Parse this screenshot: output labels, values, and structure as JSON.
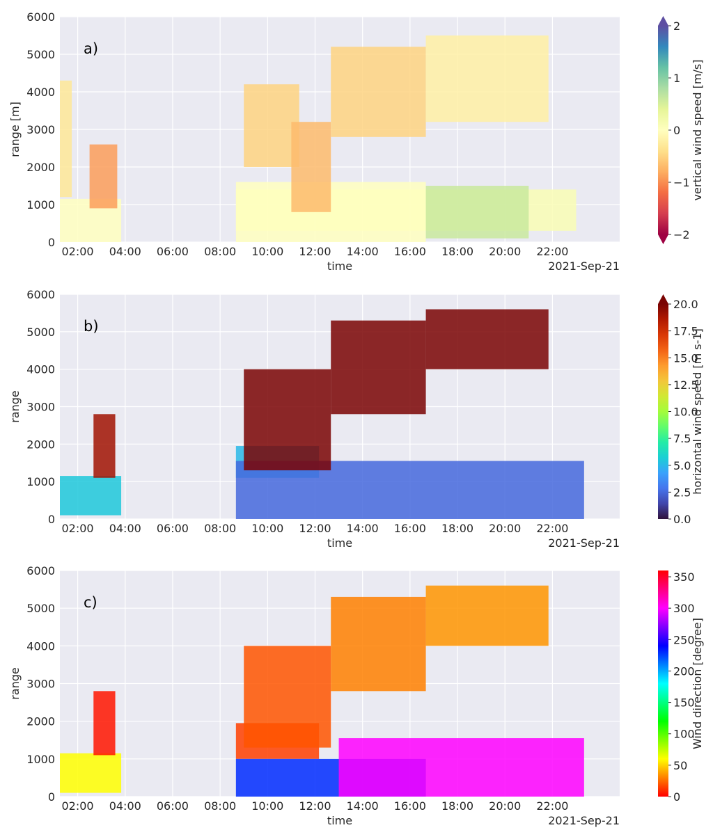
{
  "figure": {
    "date_label": "2021-Sep-21"
  },
  "chart_data": [
    {
      "panel_label": "a)",
      "type": "heatmap",
      "xlabel": "time",
      "ylabel": "range [m]",
      "x_ticks": [
        "02:00",
        "04:00",
        "06:00",
        "08:00",
        "10:00",
        "12:00",
        "14:00",
        "16:00",
        "18:00",
        "20:00",
        "22:00"
      ],
      "y_ticks": [
        0,
        1000,
        2000,
        3000,
        4000,
        5000,
        6000
      ],
      "xlim": [
        "01:15",
        "24:50"
      ],
      "ylim": [
        0,
        6000
      ],
      "colorbar": {
        "label": "vertical wind speed [m/s]",
        "min": -2,
        "max": 2,
        "ticks": [
          -2,
          -1,
          0,
          1,
          2
        ],
        "tick_labels": [
          "−2",
          "−1",
          "0",
          "1",
          "2"
        ],
        "extend": "both",
        "colormap": [
          "#9e0142",
          "#d53e4f",
          "#f46d43",
          "#fdae61",
          "#fee08b",
          "#ffffbf",
          "#e6f598",
          "#abdda4",
          "#66c2a5",
          "#3288bd",
          "#5e4fa2"
        ]
      },
      "regions": [
        {
          "time": [
            "01:15",
            "03:50"
          ],
          "range": [
            0,
            1150
          ],
          "value": 0.0
        },
        {
          "time": [
            "02:30",
            "03:40"
          ],
          "range": [
            900,
            2600
          ],
          "value": -0.9
        },
        {
          "time": [
            "01:15",
            "01:45"
          ],
          "range": [
            1200,
            4300
          ],
          "value": -0.3
        },
        {
          "time": [
            "08:40",
            "23:00"
          ],
          "range": [
            300,
            1400
          ],
          "value": 0.1
        },
        {
          "time": [
            "08:40",
            "16:40"
          ],
          "range": [
            0,
            1600
          ],
          "value": 0.0
        },
        {
          "time": [
            "09:00",
            "11:20"
          ],
          "range": [
            2000,
            4200
          ],
          "value": -0.5
        },
        {
          "time": [
            "11:00",
            "12:40"
          ],
          "range": [
            800,
            3200
          ],
          "value": -0.7
        },
        {
          "time": [
            "12:40",
            "16:40"
          ],
          "range": [
            2800,
            5200
          ],
          "value": -0.5
        },
        {
          "time": [
            "16:40",
            "21:50"
          ],
          "range": [
            3200,
            5500
          ],
          "value": -0.2
        },
        {
          "time": [
            "16:40",
            "21:00"
          ],
          "range": [
            100,
            1500
          ],
          "value": 0.6
        }
      ]
    },
    {
      "panel_label": "b)",
      "type": "heatmap",
      "xlabel": "time",
      "ylabel": "range",
      "x_ticks": [
        "02:00",
        "04:00",
        "06:00",
        "08:00",
        "10:00",
        "12:00",
        "14:00",
        "16:00",
        "18:00",
        "20:00",
        "22:00"
      ],
      "y_ticks": [
        0,
        1000,
        2000,
        3000,
        4000,
        5000,
        6000
      ],
      "xlim": [
        "01:15",
        "24:50"
      ],
      "ylim": [
        0,
        6000
      ],
      "colorbar": {
        "label": "horizontal wind speed [m s-1]",
        "min": 0,
        "max": 20,
        "ticks": [
          0,
          2.5,
          5,
          7.5,
          10,
          12.5,
          15,
          17.5,
          20
        ],
        "tick_labels": [
          "0.0",
          "2.5",
          "5.0",
          "7.5",
          "10.0",
          "12.5",
          "15.0",
          "17.5",
          "20.0"
        ],
        "extend": "max",
        "colormap": [
          "#30123b",
          "#4145ab",
          "#4675ed",
          "#39a2fc",
          "#1bcfd4",
          "#24eca6",
          "#61fc6c",
          "#a4fc3b",
          "#d1e834",
          "#f3c63a",
          "#fe9b2d",
          "#f36315",
          "#d93806",
          "#b11901",
          "#7a0403"
        ]
      },
      "regions": [
        {
          "time": [
            "01:15",
            "03:50"
          ],
          "range": [
            100,
            1150
          ],
          "value": 5.5
        },
        {
          "time": [
            "02:40",
            "03:35"
          ],
          "range": [
            1100,
            2800
          ],
          "value": 19.0
        },
        {
          "time": [
            "08:40",
            "12:10"
          ],
          "range": [
            1100,
            1950
          ],
          "value": 5.0
        },
        {
          "time": [
            "08:40",
            "23:20"
          ],
          "range": [
            0,
            1550
          ],
          "value": 2.5
        },
        {
          "time": [
            "09:00",
            "12:40"
          ],
          "range": [
            1300,
            4000
          ],
          "value": 20.0
        },
        {
          "time": [
            "12:40",
            "16:40"
          ],
          "range": [
            2800,
            5300
          ],
          "value": 20.0
        },
        {
          "time": [
            "16:40",
            "21:50"
          ],
          "range": [
            4000,
            5600
          ],
          "value": 20.0
        }
      ]
    },
    {
      "panel_label": "c)",
      "type": "heatmap",
      "xlabel": "time",
      "ylabel": "range",
      "x_ticks": [
        "02:00",
        "04:00",
        "06:00",
        "08:00",
        "10:00",
        "12:00",
        "14:00",
        "16:00",
        "18:00",
        "20:00",
        "22:00"
      ],
      "y_ticks": [
        0,
        1000,
        2000,
        3000,
        4000,
        5000,
        6000
      ],
      "xlim": [
        "01:15",
        "24:50"
      ],
      "ylim": [
        0,
        6000
      ],
      "colorbar": {
        "label": "Wind direction [degree]",
        "min": 0,
        "max": 360,
        "ticks": [
          0,
          50,
          100,
          150,
          200,
          250,
          300,
          350
        ],
        "tick_labels": [
          "0",
          "50",
          "100",
          "150",
          "200",
          "250",
          "300",
          "350"
        ],
        "extend": "neither",
        "colormap": [
          "#ff0000",
          "#ff8000",
          "#ffff00",
          "#80ff00",
          "#00ff00",
          "#00ff80",
          "#00ffff",
          "#0080ff",
          "#0000ff",
          "#8000ff",
          "#ff00ff",
          "#ff0080",
          "#ff0000"
        ]
      },
      "regions": [
        {
          "time": [
            "01:15",
            "03:50"
          ],
          "range": [
            100,
            1150
          ],
          "value": 60
        },
        {
          "time": [
            "02:40",
            "03:35"
          ],
          "range": [
            1100,
            2800
          ],
          "value": 5
        },
        {
          "time": [
            "08:40",
            "12:10"
          ],
          "range": [
            1000,
            1950
          ],
          "value": 15
        },
        {
          "time": [
            "08:40",
            "16:40"
          ],
          "range": [
            0,
            1000
          ],
          "value": 230
        },
        {
          "time": [
            "13:00",
            "23:20"
          ],
          "range": [
            0,
            1550
          ],
          "value": 300
        },
        {
          "time": [
            "09:00",
            "12:40"
          ],
          "range": [
            1300,
            4000
          ],
          "value": 20
        },
        {
          "time": [
            "12:40",
            "16:40"
          ],
          "range": [
            2800,
            5300
          ],
          "value": 30
        },
        {
          "time": [
            "16:40",
            "21:50"
          ],
          "range": [
            4000,
            5600
          ],
          "value": 35
        }
      ]
    }
  ]
}
